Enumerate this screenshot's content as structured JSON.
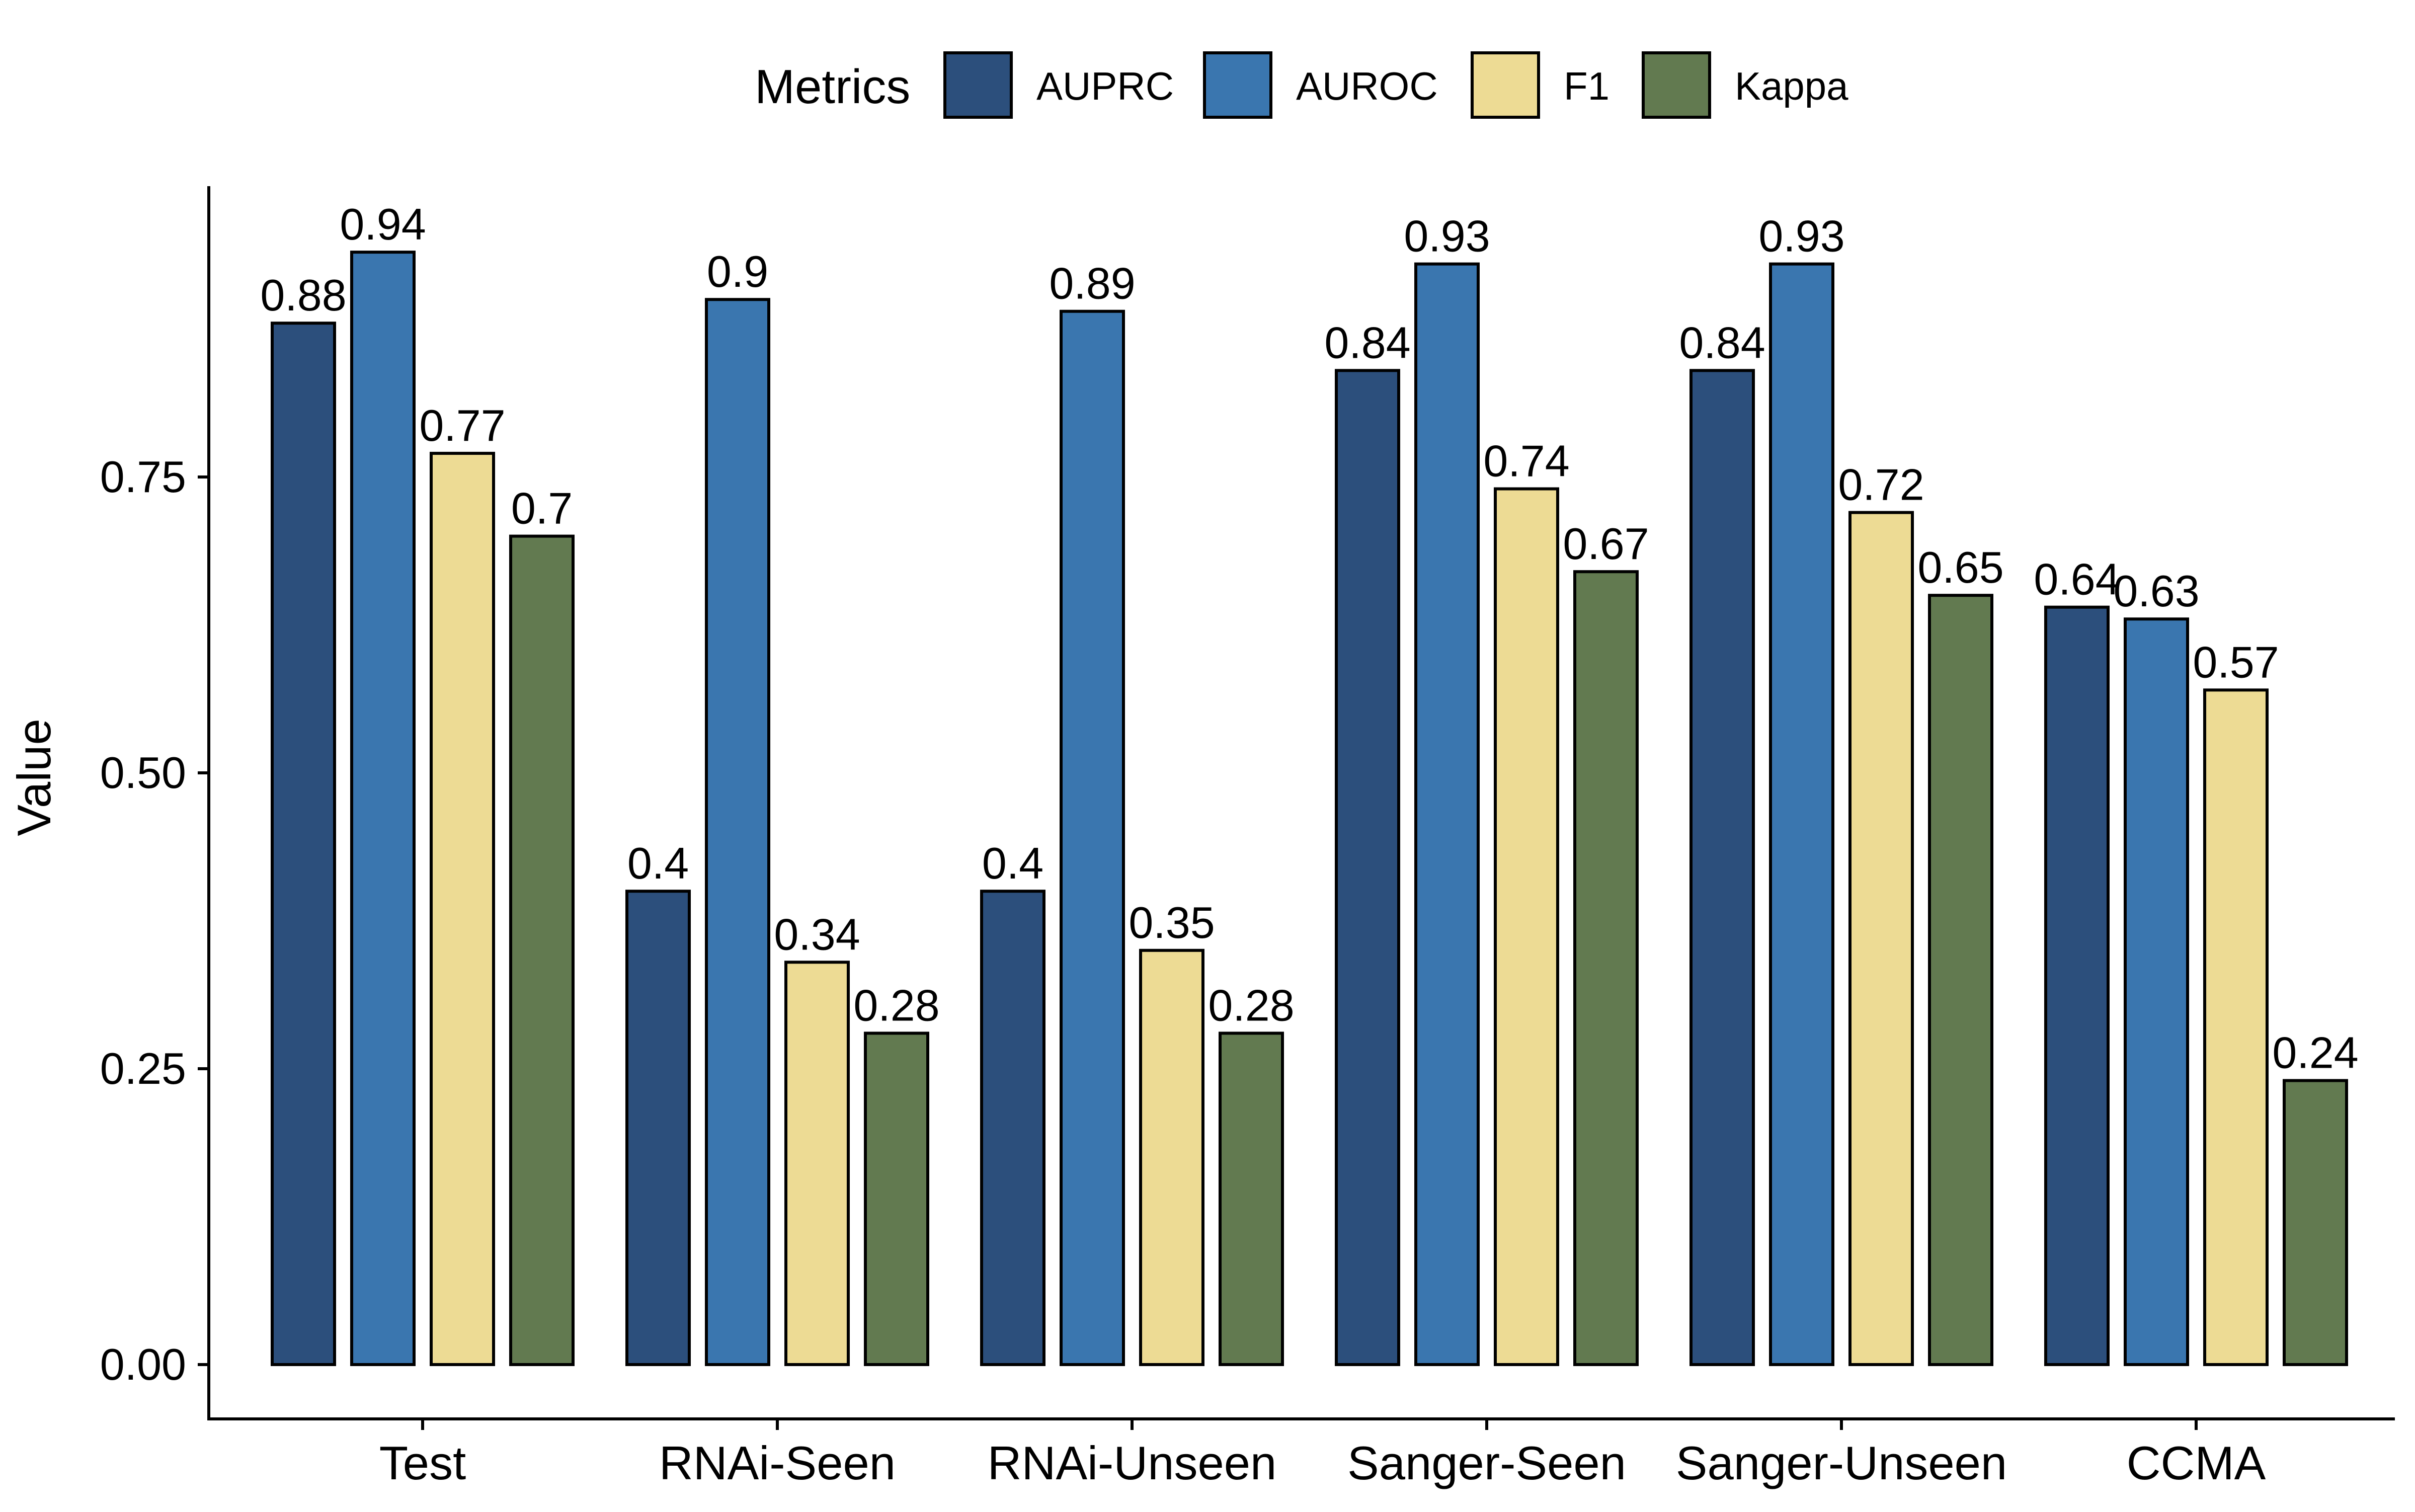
{
  "chart_data": {
    "type": "bar",
    "categories": [
      "Test",
      "RNAi-Seen",
      "RNAi-Unseen",
      "Sanger-Seen",
      "Sanger-Unseen",
      "CCMA"
    ],
    "series": [
      {
        "name": "AUPRC",
        "color": "#2C4F7C",
        "values": [
          0.88,
          0.4,
          0.4,
          0.84,
          0.84,
          0.64
        ],
        "labels": [
          "0.88",
          "0.4",
          "0.4",
          "0.84",
          "0.84",
          "0.64"
        ]
      },
      {
        "name": "AUROC",
        "color": "#3A76AF",
        "values": [
          0.94,
          0.9,
          0.89,
          0.93,
          0.93,
          0.63
        ],
        "labels": [
          "0.94",
          "0.9",
          "0.89",
          "0.93",
          "0.93",
          "0.63"
        ]
      },
      {
        "name": "F1",
        "color": "#EDDB94",
        "values": [
          0.77,
          0.34,
          0.35,
          0.74,
          0.72,
          0.57
        ],
        "labels": [
          "0.77",
          "0.34",
          "0.35",
          "0.74",
          "0.72",
          "0.57"
        ]
      },
      {
        "name": "Kappa",
        "color": "#627A50",
        "values": [
          0.7,
          0.28,
          0.28,
          0.67,
          0.65,
          0.24
        ],
        "labels": [
          "0.7",
          "0.28",
          "0.28",
          "0.67",
          "0.65",
          "0.24"
        ]
      }
    ],
    "title": "",
    "xlabel": "",
    "ylabel": "Value",
    "ylim": [
      0,
      1
    ],
    "yticks": [
      0,
      0.25,
      0.5,
      0.75
    ],
    "ytick_labels": [
      "0.00",
      "0.25",
      "0.50",
      "0.75"
    ],
    "legend_title": "Metrics",
    "legend_position": "top",
    "grid": false,
    "bar_outline_color": "#000000"
  }
}
